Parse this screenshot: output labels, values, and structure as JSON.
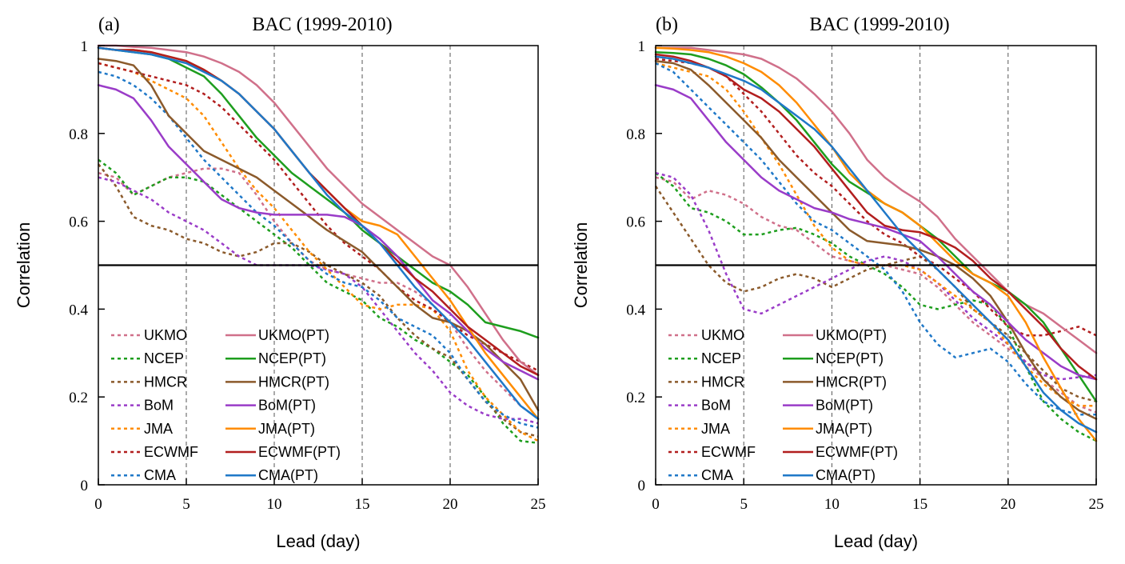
{
  "chart_data": [
    {
      "type": "line",
      "panel_label": "(a)",
      "title": "BAC (1999-2010)",
      "xlabel": "Lead (day)",
      "ylabel": "Correlation",
      "xlim": [
        0,
        25
      ],
      "ylim": [
        0,
        1
      ],
      "xticks": [
        "0",
        "5",
        "10",
        "15",
        "20",
        "25"
      ],
      "yticks": [
        "0",
        "0.2",
        "0.4",
        "0.6",
        "0.8",
        "1"
      ],
      "vgrid": "dashed at 5, 10, 15, 20",
      "reference_line": 0.5,
      "legend_placement": "lower-left, two columns",
      "x": [
        0,
        1,
        2,
        3,
        4,
        5,
        6,
        7,
        8,
        9,
        10,
        11,
        12,
        13,
        14,
        15,
        16,
        17,
        18,
        19,
        20,
        21,
        22,
        23,
        24,
        25
      ],
      "series": [
        {
          "name": "UKMO",
          "color": "#d0708a",
          "dash": "dotted",
          "values": [
            0.71,
            0.7,
            0.66,
            0.68,
            0.7,
            0.71,
            0.72,
            0.72,
            0.71,
            0.66,
            0.6,
            0.55,
            0.51,
            0.49,
            0.48,
            0.47,
            0.46,
            0.46,
            0.44,
            0.41,
            0.37,
            0.31,
            0.26,
            0.22,
            0.18,
            0.15
          ]
        },
        {
          "name": "NCEP",
          "color": "#1e9e1e",
          "dash": "dotted",
          "values": [
            0.74,
            0.71,
            0.66,
            0.68,
            0.7,
            0.7,
            0.69,
            0.66,
            0.63,
            0.6,
            0.57,
            0.54,
            0.5,
            0.46,
            0.44,
            0.42,
            0.38,
            0.36,
            0.33,
            0.31,
            0.28,
            0.25,
            0.2,
            0.14,
            0.1,
            0.095
          ]
        },
        {
          "name": "HMCR",
          "color": "#8b5a2b",
          "dash": "dotted",
          "values": [
            0.73,
            0.68,
            0.61,
            0.59,
            0.58,
            0.56,
            0.55,
            0.53,
            0.52,
            0.53,
            0.55,
            0.55,
            0.53,
            0.5,
            0.48,
            0.46,
            0.43,
            0.38,
            0.34,
            0.31,
            0.29,
            0.24,
            0.19,
            0.15,
            0.12,
            0.11
          ]
        },
        {
          "name": "BoM",
          "color": "#9a3cc8",
          "dash": "dotted",
          "values": [
            0.7,
            0.69,
            0.67,
            0.65,
            0.62,
            0.6,
            0.58,
            0.55,
            0.52,
            0.5,
            0.5,
            0.5,
            0.5,
            0.49,
            0.48,
            0.45,
            0.4,
            0.35,
            0.3,
            0.26,
            0.21,
            0.18,
            0.16,
            0.15,
            0.15,
            0.14
          ]
        },
        {
          "name": "JMA",
          "color": "#ff8c00",
          "dash": "dotted",
          "values": [
            0.96,
            0.95,
            0.94,
            0.92,
            0.9,
            0.88,
            0.84,
            0.78,
            0.72,
            0.67,
            0.63,
            0.58,
            0.53,
            0.49,
            0.45,
            0.41,
            0.4,
            0.41,
            0.41,
            0.4,
            0.35,
            0.26,
            0.2,
            0.16,
            0.12,
            0.1
          ]
        },
        {
          "name": "ECWMF",
          "color": "#b21e1e",
          "dash": "dotted",
          "values": [
            0.96,
            0.95,
            0.94,
            0.93,
            0.92,
            0.91,
            0.89,
            0.86,
            0.82,
            0.78,
            0.74,
            0.69,
            0.64,
            0.59,
            0.55,
            0.52,
            0.49,
            0.45,
            0.42,
            0.4,
            0.37,
            0.34,
            0.32,
            0.3,
            0.28,
            0.26
          ]
        },
        {
          "name": "CMA",
          "color": "#1f78c8",
          "dash": "dotted",
          "values": [
            0.94,
            0.93,
            0.91,
            0.88,
            0.84,
            0.79,
            0.74,
            0.7,
            0.66,
            0.62,
            0.59,
            0.55,
            0.51,
            0.48,
            0.46,
            0.45,
            0.42,
            0.38,
            0.36,
            0.34,
            0.3,
            0.24,
            0.19,
            0.16,
            0.14,
            0.13
          ]
        },
        {
          "name": "UKMO(PT)",
          "color": "#d0708a",
          "dash": "solid",
          "values": [
            1.0,
            1.0,
            0.997,
            0.995,
            0.99,
            0.985,
            0.975,
            0.96,
            0.94,
            0.91,
            0.87,
            0.82,
            0.77,
            0.72,
            0.68,
            0.64,
            0.61,
            0.58,
            0.55,
            0.52,
            0.5,
            0.45,
            0.39,
            0.33,
            0.28,
            0.25
          ]
        },
        {
          "name": "NCEP(PT)",
          "color": "#1e9e1e",
          "dash": "solid",
          "values": [
            0.995,
            0.99,
            0.985,
            0.98,
            0.97,
            0.95,
            0.93,
            0.89,
            0.84,
            0.79,
            0.75,
            0.71,
            0.68,
            0.65,
            0.62,
            0.58,
            0.55,
            0.52,
            0.49,
            0.46,
            0.44,
            0.41,
            0.37,
            0.36,
            0.35,
            0.335
          ]
        },
        {
          "name": "HMCR(PT)",
          "color": "#8b5a2b",
          "dash": "solid",
          "values": [
            0.97,
            0.965,
            0.955,
            0.91,
            0.84,
            0.8,
            0.76,
            0.74,
            0.72,
            0.7,
            0.67,
            0.64,
            0.61,
            0.58,
            0.555,
            0.53,
            0.49,
            0.45,
            0.41,
            0.38,
            0.37,
            0.35,
            0.32,
            0.28,
            0.24,
            0.17
          ]
        },
        {
          "name": "BoM(PT)",
          "color": "#9a3cc8",
          "dash": "solid",
          "values": [
            0.91,
            0.9,
            0.88,
            0.83,
            0.77,
            0.73,
            0.69,
            0.65,
            0.63,
            0.62,
            0.615,
            0.615,
            0.615,
            0.615,
            0.61,
            0.59,
            0.56,
            0.52,
            0.47,
            0.42,
            0.39,
            0.35,
            0.31,
            0.28,
            0.26,
            0.24
          ]
        },
        {
          "name": "JMA(PT)",
          "color": "#ff8c00",
          "dash": "solid",
          "values": [
            0.995,
            0.99,
            0.99,
            0.985,
            0.975,
            0.965,
            0.945,
            0.92,
            0.89,
            0.85,
            0.81,
            0.76,
            0.71,
            0.67,
            0.63,
            0.6,
            0.59,
            0.57,
            0.52,
            0.47,
            0.42,
            0.36,
            0.3,
            0.25,
            0.2,
            0.15
          ]
        },
        {
          "name": "ECWMF(PT)",
          "color": "#b21e1e",
          "dash": "solid",
          "values": [
            0.995,
            0.99,
            0.99,
            0.985,
            0.975,
            0.965,
            0.945,
            0.92,
            0.89,
            0.85,
            0.81,
            0.76,
            0.71,
            0.67,
            0.63,
            0.59,
            0.55,
            0.51,
            0.47,
            0.44,
            0.4,
            0.36,
            0.33,
            0.3,
            0.27,
            0.25
          ]
        },
        {
          "name": "CMA(PT)",
          "color": "#1f78c8",
          "dash": "solid",
          "values": [
            0.995,
            0.99,
            0.985,
            0.98,
            0.97,
            0.96,
            0.94,
            0.92,
            0.89,
            0.85,
            0.81,
            0.76,
            0.71,
            0.66,
            0.62,
            0.59,
            0.55,
            0.5,
            0.45,
            0.41,
            0.37,
            0.33,
            0.28,
            0.23,
            0.18,
            0.15
          ]
        }
      ]
    },
    {
      "type": "line",
      "panel_label": "(b)",
      "title": "BAC (1999-2010)",
      "xlabel": "Lead (day)",
      "ylabel": "Correlation",
      "xlim": [
        0,
        25
      ],
      "ylim": [
        0,
        1
      ],
      "xticks": [
        "0",
        "5",
        "10",
        "15",
        "20",
        "25"
      ],
      "yticks": [
        "0",
        "0.2",
        "0.4",
        "0.6",
        "0.8",
        "1"
      ],
      "vgrid": "dashed at 5, 10, 15, 20",
      "reference_line": 0.5,
      "legend_placement": "lower-left, two columns",
      "x": [
        0,
        1,
        2,
        3,
        4,
        5,
        6,
        7,
        8,
        9,
        10,
        11,
        12,
        13,
        14,
        15,
        16,
        17,
        18,
        19,
        20,
        21,
        22,
        23,
        24,
        25
      ],
      "series": [
        {
          "name": "UKMO",
          "color": "#d0708a",
          "dash": "dotted",
          "values": [
            0.7,
            0.69,
            0.65,
            0.67,
            0.66,
            0.64,
            0.61,
            0.59,
            0.58,
            0.55,
            0.52,
            0.51,
            0.5,
            0.5,
            0.49,
            0.48,
            0.45,
            0.41,
            0.37,
            0.34,
            0.31,
            0.28,
            0.24,
            0.21,
            0.18,
            0.165
          ]
        },
        {
          "name": "NCEP",
          "color": "#1e9e1e",
          "dash": "dotted",
          "values": [
            0.71,
            0.68,
            0.63,
            0.62,
            0.6,
            0.57,
            0.57,
            0.58,
            0.585,
            0.57,
            0.55,
            0.52,
            0.5,
            0.48,
            0.45,
            0.41,
            0.4,
            0.41,
            0.42,
            0.41,
            0.36,
            0.27,
            0.19,
            0.15,
            0.12,
            0.1
          ]
        },
        {
          "name": "HMCR",
          "color": "#8b5a2b",
          "dash": "dotted",
          "values": [
            0.68,
            0.62,
            0.56,
            0.5,
            0.46,
            0.44,
            0.45,
            0.47,
            0.48,
            0.47,
            0.45,
            0.47,
            0.49,
            0.5,
            0.51,
            0.52,
            0.49,
            0.45,
            0.4,
            0.37,
            0.34,
            0.3,
            0.26,
            0.22,
            0.2,
            0.19
          ]
        },
        {
          "name": "BoM",
          "color": "#9a3cc8",
          "dash": "dotted",
          "values": [
            0.71,
            0.7,
            0.66,
            0.58,
            0.48,
            0.4,
            0.39,
            0.41,
            0.43,
            0.45,
            0.47,
            0.49,
            0.51,
            0.52,
            0.51,
            0.49,
            0.46,
            0.42,
            0.38,
            0.35,
            0.32,
            0.28,
            0.25,
            0.24,
            0.245,
            0.25
          ]
        },
        {
          "name": "JMA",
          "color": "#ff8c00",
          "dash": "dotted",
          "values": [
            0.96,
            0.95,
            0.94,
            0.93,
            0.9,
            0.85,
            0.79,
            0.73,
            0.66,
            0.59,
            0.54,
            0.51,
            0.5,
            0.5,
            0.5,
            0.49,
            0.46,
            0.43,
            0.4,
            0.37,
            0.32,
            0.27,
            0.23,
            0.2,
            0.18,
            0.18
          ]
        },
        {
          "name": "ECWMF",
          "color": "#b21e1e",
          "dash": "dotted",
          "values": [
            0.97,
            0.965,
            0.96,
            0.95,
            0.93,
            0.89,
            0.85,
            0.8,
            0.75,
            0.71,
            0.68,
            0.64,
            0.6,
            0.57,
            0.55,
            0.52,
            0.5,
            0.47,
            0.44,
            0.4,
            0.36,
            0.34,
            0.34,
            0.35,
            0.36,
            0.34
          ]
        },
        {
          "name": "CMA",
          "color": "#1f78c8",
          "dash": "dotted",
          "values": [
            0.96,
            0.94,
            0.9,
            0.86,
            0.82,
            0.78,
            0.74,
            0.69,
            0.64,
            0.6,
            0.58,
            0.55,
            0.52,
            0.49,
            0.44,
            0.37,
            0.32,
            0.29,
            0.3,
            0.31,
            0.28,
            0.23,
            0.19,
            0.17,
            0.16,
            0.16
          ]
        },
        {
          "name": "UKMO(PT)",
          "color": "#d0708a",
          "dash": "solid",
          "values": [
            0.995,
            0.995,
            0.995,
            0.99,
            0.985,
            0.98,
            0.97,
            0.95,
            0.925,
            0.89,
            0.85,
            0.8,
            0.74,
            0.7,
            0.67,
            0.645,
            0.61,
            0.56,
            0.52,
            0.48,
            0.44,
            0.41,
            0.39,
            0.36,
            0.33,
            0.3
          ]
        },
        {
          "name": "NCEP(PT)",
          "color": "#1e9e1e",
          "dash": "solid",
          "values": [
            0.985,
            0.983,
            0.98,
            0.97,
            0.955,
            0.935,
            0.905,
            0.87,
            0.83,
            0.78,
            0.73,
            0.69,
            0.665,
            0.64,
            0.62,
            0.59,
            0.56,
            0.52,
            0.48,
            0.46,
            0.44,
            0.41,
            0.37,
            0.31,
            0.25,
            0.19
          ]
        },
        {
          "name": "HMCR(PT)",
          "color": "#8b5a2b",
          "dash": "solid",
          "values": [
            0.965,
            0.96,
            0.945,
            0.91,
            0.87,
            0.83,
            0.79,
            0.74,
            0.7,
            0.66,
            0.62,
            0.58,
            0.555,
            0.55,
            0.545,
            0.535,
            0.52,
            0.5,
            0.47,
            0.43,
            0.37,
            0.3,
            0.24,
            0.2,
            0.17,
            0.15
          ]
        },
        {
          "name": "BoM(PT)",
          "color": "#9a3cc8",
          "dash": "solid",
          "values": [
            0.91,
            0.9,
            0.88,
            0.83,
            0.78,
            0.74,
            0.7,
            0.67,
            0.65,
            0.63,
            0.62,
            0.605,
            0.595,
            0.585,
            0.57,
            0.555,
            0.52,
            0.48,
            0.44,
            0.41,
            0.37,
            0.33,
            0.3,
            0.27,
            0.25,
            0.24
          ]
        },
        {
          "name": "JMA(PT)",
          "color": "#ff8c00",
          "dash": "solid",
          "values": [
            0.995,
            0.993,
            0.99,
            0.985,
            0.975,
            0.96,
            0.94,
            0.91,
            0.87,
            0.82,
            0.77,
            0.71,
            0.67,
            0.64,
            0.62,
            0.59,
            0.55,
            0.51,
            0.48,
            0.46,
            0.43,
            0.37,
            0.29,
            0.22,
            0.15,
            0.1
          ]
        },
        {
          "name": "ECWMF(PT)",
          "color": "#b21e1e",
          "dash": "solid",
          "values": [
            0.98,
            0.975,
            0.965,
            0.95,
            0.93,
            0.9,
            0.88,
            0.85,
            0.81,
            0.77,
            0.72,
            0.67,
            0.62,
            0.59,
            0.58,
            0.575,
            0.56,
            0.54,
            0.51,
            0.47,
            0.44,
            0.4,
            0.36,
            0.31,
            0.27,
            0.24
          ]
        },
        {
          "name": "CMA(PT)",
          "color": "#1f78c8",
          "dash": "solid",
          "values": [
            0.975,
            0.97,
            0.96,
            0.95,
            0.935,
            0.92,
            0.9,
            0.87,
            0.84,
            0.81,
            0.77,
            0.72,
            0.67,
            0.62,
            0.57,
            0.53,
            0.49,
            0.45,
            0.41,
            0.37,
            0.33,
            0.27,
            0.21,
            0.17,
            0.14,
            0.12
          ]
        }
      ]
    }
  ]
}
